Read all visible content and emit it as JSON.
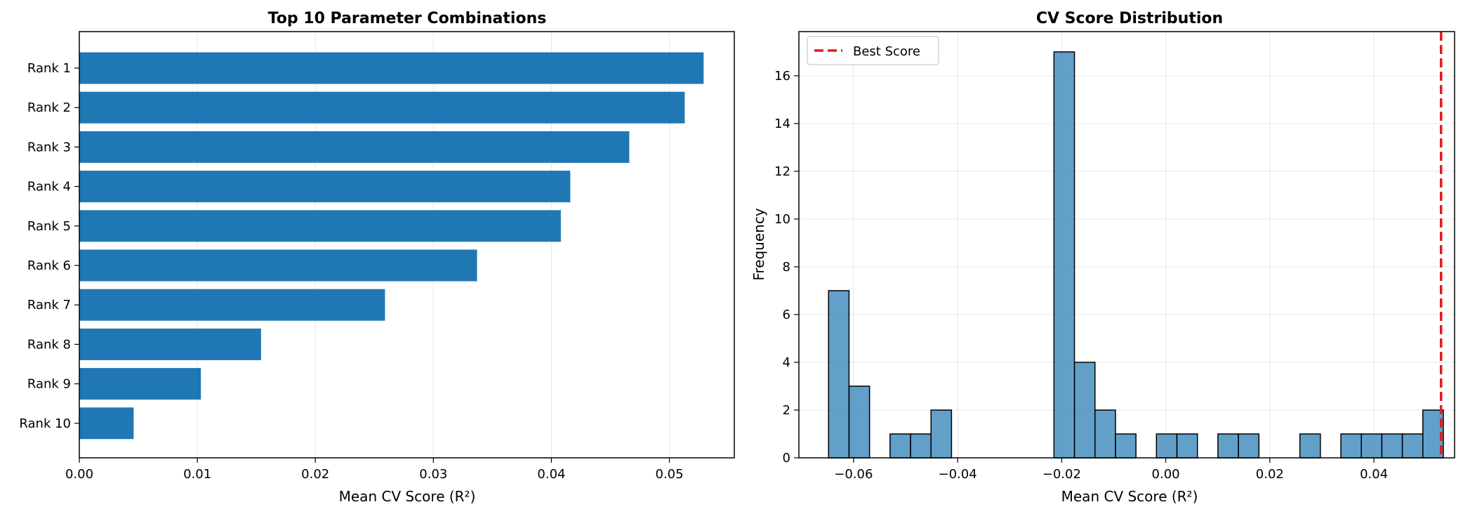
{
  "chart_data": [
    {
      "type": "bar",
      "orientation": "horizontal",
      "title": "Top 10 Parameter Combinations",
      "xlabel": "Mean CV Score (R²)",
      "ylabel": "",
      "categories": [
        "Rank 1",
        "Rank 2",
        "Rank 3",
        "Rank 4",
        "Rank 5",
        "Rank 6",
        "Rank 7",
        "Rank 8",
        "Rank 9",
        "Rank 10"
      ],
      "values": [
        0.0529,
        0.0513,
        0.0466,
        0.0416,
        0.0408,
        0.0337,
        0.0259,
        0.0154,
        0.0103,
        0.0046
      ],
      "xlim": [
        0,
        0.0555
      ],
      "xticks": [
        0.0,
        0.01,
        0.02,
        0.03,
        0.04,
        0.05
      ],
      "xtick_labels": [
        "0.00",
        "0.01",
        "0.02",
        "0.03",
        "0.04",
        "0.05"
      ],
      "grid": "x",
      "bar_color": "#1f77b4"
    },
    {
      "type": "histogram",
      "title": "CV Score Distribution",
      "xlabel": "Mean CV Score (R²)",
      "ylabel": "Frequency",
      "bin_start": -0.0648,
      "bin_width": 0.003938,
      "counts": [
        7,
        3,
        0,
        1,
        1,
        2,
        0,
        0,
        0,
        0,
        0,
        17,
        4,
        2,
        1,
        0,
        1,
        1,
        0,
        1,
        1,
        0,
        0,
        1,
        0,
        1,
        1,
        1,
        1,
        2
      ],
      "xlim": [
        -0.0705,
        0.0555
      ],
      "ylim": [
        0,
        17.85
      ],
      "xticks": [
        -0.06,
        -0.04,
        -0.02,
        0.0,
        0.02,
        0.04
      ],
      "xtick_labels": [
        "−0.06",
        "−0.04",
        "−0.02",
        "0.00",
        "0.02",
        "0.04"
      ],
      "yticks": [
        0,
        2,
        4,
        6,
        8,
        10,
        12,
        14,
        16
      ],
      "ytick_labels": [
        "0",
        "2",
        "4",
        "6",
        "8",
        "10",
        "12",
        "14",
        "16"
      ],
      "grid": "both",
      "bar_color": "#1f77b4",
      "best_score": 0.0529,
      "best_score_color": "#e41a1c",
      "legend": {
        "label": "Best Score",
        "placement": "upper-left"
      }
    }
  ]
}
